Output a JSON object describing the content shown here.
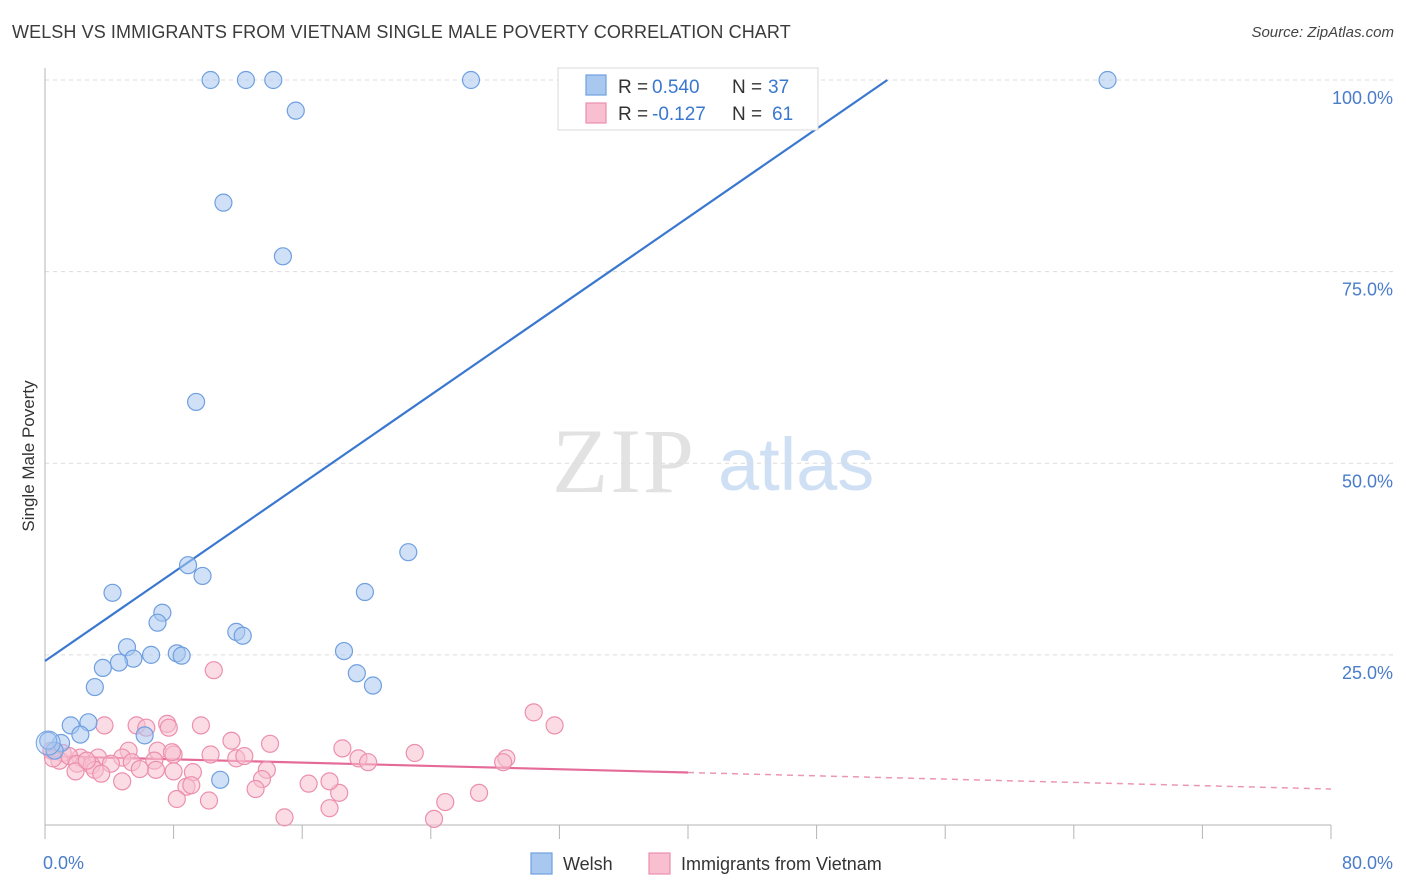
{
  "chart_title": "WELSH VS IMMIGRANTS FROM VIETNAM SINGLE MALE POVERTY CORRELATION CHART",
  "source": "Source: ZipAtlas.com",
  "watermark": {
    "zip": "ZIP",
    "atlas": "atlas"
  },
  "legend": {
    "rows": [
      {
        "r_label": "R =",
        "r_value": "0.540",
        "n_label": "N =",
        "n_value": "37",
        "color": "#a9c8f0",
        "stroke": "#6f9fe0"
      },
      {
        "r_label": "R =",
        "r_value": "-0.127",
        "n_label": "N =",
        "n_value": "61",
        "color": "#f7bfd0",
        "stroke": "#ec8fae"
      }
    ]
  },
  "bottom_legend": [
    {
      "label": "Welsh",
      "color": "#a9c8f0",
      "stroke": "#6f9fe0"
    },
    {
      "label": "Immigrants from Vietnam",
      "color": "#f7bfd0",
      "stroke": "#ec8fae"
    }
  ],
  "chart_data": {
    "type": "scatter",
    "title": "WELSH VS IMMIGRANTS FROM VIETNAM SINGLE MALE POVERTY CORRELATION CHART",
    "ylabel": "Single Male Poverty",
    "xlim": [
      0,
      80
    ],
    "ylim": [
      0,
      100
    ],
    "x_tick_labels": [
      "0.0%",
      "80.0%"
    ],
    "y_ticks": [
      25,
      50,
      75,
      100
    ],
    "y_tick_labels": [
      "25.0%",
      "50.0%",
      "75.0%",
      "100.0%"
    ],
    "grid": "horizontal dashed",
    "series": [
      {
        "name": "Welsh",
        "color": "#6f9fe0",
        "fill": "#a9c8f0",
        "points": [
          [
            10.3,
            100
          ],
          [
            12.5,
            100
          ],
          [
            14.2,
            100
          ],
          [
            26.5,
            100
          ],
          [
            66.1,
            100
          ],
          [
            15.6,
            96
          ],
          [
            11.1,
            84
          ],
          [
            14.8,
            77
          ],
          [
            9.4,
            58
          ],
          [
            22.6,
            38.4
          ],
          [
            8.9,
            36.7
          ],
          [
            9.8,
            35.3
          ],
          [
            4.2,
            33.1
          ],
          [
            19.9,
            33.2
          ],
          [
            7.3,
            30.5
          ],
          [
            7.0,
            29.2
          ],
          [
            11.9,
            28.0
          ],
          [
            12.3,
            27.5
          ],
          [
            5.1,
            26.0
          ],
          [
            18.6,
            25.5
          ],
          [
            6.6,
            25.0
          ],
          [
            5.5,
            24.5
          ],
          [
            8.2,
            25.2
          ],
          [
            8.5,
            24.9
          ],
          [
            4.6,
            24.0
          ],
          [
            3.6,
            23.3
          ],
          [
            19.4,
            22.6
          ],
          [
            20.4,
            21.0
          ],
          [
            3.1,
            20.8
          ],
          [
            1.6,
            15.8
          ],
          [
            2.7,
            16.2
          ],
          [
            2.2,
            14.6
          ],
          [
            6.2,
            14.5
          ],
          [
            1.0,
            13.5
          ],
          [
            0.6,
            12.5
          ],
          [
            10.9,
            8.7
          ],
          [
            0.2,
            13.8
          ]
        ]
      },
      {
        "name": "Immigrants from Vietnam",
        "color": "#ec8fae",
        "fill": "#f7bfd0",
        "points": [
          [
            10.5,
            23.0
          ],
          [
            30.4,
            17.5
          ],
          [
            31.7,
            15.8
          ],
          [
            7.6,
            16.0
          ],
          [
            9.7,
            15.8
          ],
          [
            3.7,
            15.8
          ],
          [
            5.7,
            15.8
          ],
          [
            6.3,
            15.5
          ],
          [
            7.7,
            15.5
          ],
          [
            11.6,
            13.8
          ],
          [
            14.0,
            13.4
          ],
          [
            18.5,
            12.8
          ],
          [
            23.0,
            12.2
          ],
          [
            7.0,
            12.5
          ],
          [
            5.2,
            12.5
          ],
          [
            1.1,
            12.2
          ],
          [
            2.2,
            11.6
          ],
          [
            3.3,
            11.6
          ],
          [
            4.8,
            11.6
          ],
          [
            6.8,
            11.2
          ],
          [
            8.0,
            12.0
          ],
          [
            10.3,
            12.0
          ],
          [
            11.9,
            11.5
          ],
          [
            19.5,
            11.5
          ],
          [
            20.1,
            11.0
          ],
          [
            28.7,
            11.5
          ],
          [
            28.5,
            11.0
          ],
          [
            0.4,
            12.5
          ],
          [
            0.9,
            11.2
          ],
          [
            1.5,
            11.8
          ],
          [
            2.0,
            10.8
          ],
          [
            2.9,
            10.6
          ],
          [
            4.1,
            10.8
          ],
          [
            5.4,
            11.0
          ],
          [
            6.9,
            10.0
          ],
          [
            5.9,
            10.1
          ],
          [
            3.1,
            10.0
          ],
          [
            1.9,
            9.8
          ],
          [
            8.0,
            9.8
          ],
          [
            9.2,
            9.7
          ],
          [
            13.8,
            10.0
          ],
          [
            13.5,
            8.8
          ],
          [
            16.4,
            8.2
          ],
          [
            8.8,
            7.8
          ],
          [
            9.1,
            8.0
          ],
          [
            4.8,
            8.5
          ],
          [
            13.1,
            7.5
          ],
          [
            10.2,
            6.0
          ],
          [
            8.2,
            6.2
          ],
          [
            18.3,
            7.0
          ],
          [
            27.0,
            7.0
          ],
          [
            24.9,
            5.8
          ],
          [
            17.7,
            5.0
          ],
          [
            14.9,
            3.8
          ],
          [
            24.2,
            3.6
          ],
          [
            3.5,
            9.5
          ],
          [
            12.4,
            11.8
          ],
          [
            17.7,
            8.5
          ],
          [
            0.5,
            11.5
          ],
          [
            7.9,
            12.3
          ],
          [
            2.6,
            11.2
          ]
        ]
      }
    ],
    "trend_lines": [
      {
        "series": "Welsh",
        "x0": 0,
        "y0": 24.2,
        "x1": 52.4,
        "y1": 100,
        "dashed_from": null
      },
      {
        "series": "Immigrants from Vietnam",
        "x0": 0,
        "y0": 11.8,
        "x1": 80,
        "y1": 7.5,
        "dashed_from": 40
      }
    ]
  }
}
